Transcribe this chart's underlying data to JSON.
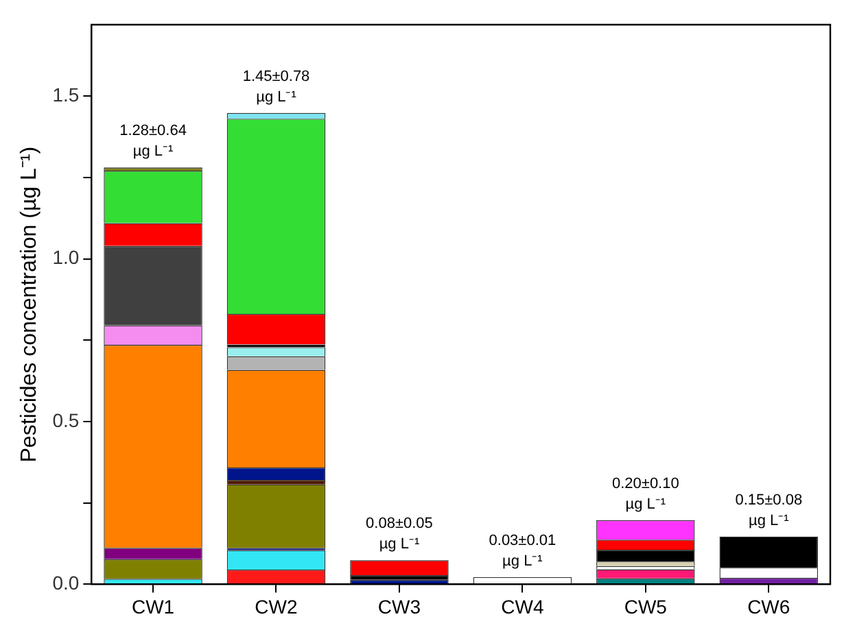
{
  "chart_data": {
    "type": "bar",
    "stacked": true,
    "ylabel": "Pesticides concentration (µg L⁻¹)",
    "categories": [
      "CW1",
      "CW2",
      "CW3",
      "CW4",
      "CW5",
      "CW6"
    ],
    "ylim": [
      0,
      1.72
    ],
    "yticks": [
      {
        "value": 0,
        "label": "0.0"
      },
      {
        "value": 0.25,
        "label": null
      },
      {
        "value": 0.5,
        "label": "0.5"
      },
      {
        "value": 0.75,
        "label": null
      },
      {
        "value": 1,
        "label": "1.0"
      },
      {
        "value": 1.25,
        "label": null
      },
      {
        "value": 1.5,
        "label": "1.5"
      }
    ],
    "grid": false,
    "legend": false,
    "totals": [
      "1.28±0.64\nµg L⁻¹",
      "1.45±0.78\nµg L⁻¹",
      "0.08±0.05\nµg L⁻¹",
      "0.03±0.01\nµg L⁻¹",
      "0.20±0.10\nµg L⁻¹",
      "0.15±0.08\nµg L⁻¹"
    ],
    "series": [
      {
        "values": [
          0.017,
          0.045,
          0.014,
          0.022,
          0.018,
          0.02
        ],
        "colors": [
          "#33e6f0",
          "#ff1a1a",
          "#00148c",
          "#ffffff",
          "#008080",
          "#7020a0"
        ]
      },
      {
        "values": [
          0.06,
          0.06,
          0.014,
          null,
          0.028,
          0.031
        ],
        "colors": [
          "#808000",
          "#33e6f5",
          "#000000",
          null,
          "#ff1a75",
          "#ffffff"
        ]
      },
      {
        "values": [
          0.035,
          0.007,
          0.046,
          null,
          0.01,
          0.096
        ],
        "colors": [
          "#800080",
          "#000080",
          "#ff0000",
          null,
          "#ffffff",
          "#000000"
        ]
      },
      {
        "values": [
          0.624,
          0.195,
          null,
          null,
          0.014,
          null
        ],
        "colors": [
          "#ff8000",
          "#808000",
          null,
          null,
          "#d9d4b0",
          null
        ]
      },
      {
        "values": [
          0.06,
          0.014,
          null,
          null,
          0.036,
          null
        ],
        "colors": [
          "#f58cf0",
          "#4d1a00",
          null,
          null,
          "#000000",
          null
        ]
      },
      {
        "values": [
          0.244,
          0.038,
          null,
          null,
          0.031,
          null
        ],
        "colors": [
          "#404040",
          "#00148c",
          null,
          null,
          "#ff0000",
          null
        ]
      },
      {
        "values": [
          0.07,
          0.3,
          null,
          null,
          0.06,
          null
        ],
        "colors": [
          "#ff0000",
          "#ff8000",
          null,
          null,
          "#ff33ff",
          null
        ]
      },
      {
        "values": [
          0.161,
          0.042,
          null,
          null,
          null,
          null
        ],
        "colors": [
          "#33dd33",
          "#b3b3b3",
          null,
          null,
          null,
          null
        ]
      },
      {
        "values": [
          0.01,
          0.028,
          null,
          null,
          null,
          null
        ],
        "colors": [
          "#808020",
          "#99eeee",
          null,
          null,
          null,
          null
        ]
      },
      {
        "values": [
          null,
          0.008,
          null,
          null,
          null,
          null
        ],
        "colors": [
          null,
          "#000000",
          null,
          null,
          null,
          null
        ]
      },
      {
        "values": [
          null,
          0.094,
          null,
          null,
          null,
          null
        ],
        "colors": [
          null,
          "#ff0000",
          null,
          null,
          null,
          null
        ]
      },
      {
        "values": [
          null,
          0.6,
          null,
          null,
          null,
          null
        ],
        "colors": [
          null,
          "#33dd33",
          null,
          null,
          null,
          null
        ]
      },
      {
        "values": [
          null,
          0.018,
          null,
          null,
          null,
          null
        ],
        "colors": [
          null,
          "#7fe5f0",
          null,
          null,
          null,
          null
        ]
      }
    ]
  }
}
